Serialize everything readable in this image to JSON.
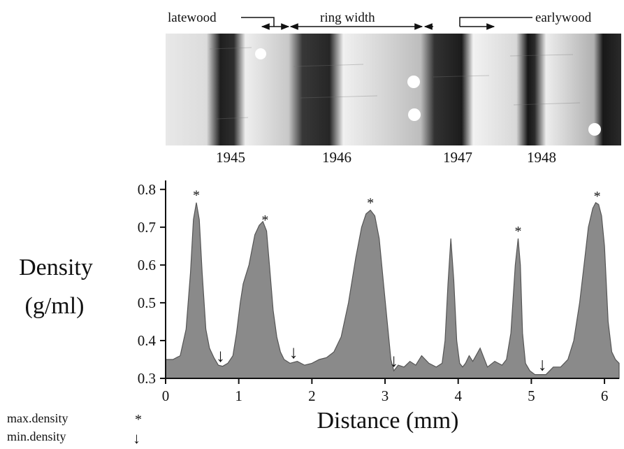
{
  "header_labels": {
    "latewood": "latewood",
    "ring_width": "ring width",
    "earlywood": "earlywood"
  },
  "year_labels": [
    "1945",
    "1946",
    "1947",
    "1948"
  ],
  "key": {
    "max_label": "max.density",
    "max_symbol": "*",
    "min_label": "min.density",
    "min_symbol": "↓"
  },
  "colors": {
    "area_fill": "#8a8a8a",
    "area_stroke": "#555555",
    "wood_light": "#e6e6e6",
    "wood_dark": "#2a2a2a"
  },
  "chart_data": {
    "type": "area",
    "xlabel": "Distance (mm)",
    "ylabel": "Density (g/ml)",
    "ylabel_lines": [
      "Density",
      "(g/ml)"
    ],
    "xlim": [
      0,
      6.2
    ],
    "ylim": [
      0.3,
      0.82
    ],
    "xticks": [
      0,
      1,
      2,
      3,
      4,
      5,
      6
    ],
    "yticks": [
      0.3,
      0.4,
      0.5,
      0.6,
      0.7,
      0.8
    ],
    "ytick_labels": [
      "0.3",
      "0.4",
      "0.5",
      "0.6",
      "0.7",
      "0.8"
    ],
    "grid": false,
    "series": [
      {
        "x": [
          0.0,
          0.1,
          0.2,
          0.28,
          0.34,
          0.38,
          0.42,
          0.46,
          0.5,
          0.55,
          0.6,
          0.66,
          0.72,
          0.78,
          0.85,
          0.92,
          0.97,
          1.02,
          1.06,
          1.1,
          1.14,
          1.18,
          1.22,
          1.28,
          1.33,
          1.38,
          1.42,
          1.47,
          1.52,
          1.57,
          1.62,
          1.7,
          1.8,
          1.9,
          2.0,
          2.1,
          2.2,
          2.3,
          2.4,
          2.5,
          2.6,
          2.68,
          2.74,
          2.8,
          2.86,
          2.92,
          2.98,
          3.04,
          3.08,
          3.12,
          3.18,
          3.26,
          3.34,
          3.42,
          3.5,
          3.6,
          3.7,
          3.78,
          3.82,
          3.86,
          3.9,
          3.94,
          3.98,
          4.02,
          4.06,
          4.1,
          4.15,
          4.2,
          4.3,
          4.4,
          4.5,
          4.6,
          4.66,
          4.72,
          4.78,
          4.82,
          4.85,
          4.88,
          4.92,
          4.98,
          5.05,
          5.12,
          5.2,
          5.3,
          5.4,
          5.5,
          5.58,
          5.66,
          5.72,
          5.78,
          5.84,
          5.88,
          5.92,
          5.96,
          6.0,
          6.05,
          6.1,
          6.15,
          6.2
        ],
        "y": [
          0.35,
          0.35,
          0.36,
          0.43,
          0.58,
          0.72,
          0.765,
          0.72,
          0.58,
          0.43,
          0.38,
          0.355,
          0.335,
          0.332,
          0.34,
          0.36,
          0.42,
          0.5,
          0.55,
          0.575,
          0.6,
          0.64,
          0.68,
          0.705,
          0.715,
          0.69,
          0.6,
          0.48,
          0.41,
          0.37,
          0.35,
          0.34,
          0.345,
          0.335,
          0.34,
          0.35,
          0.355,
          0.37,
          0.41,
          0.5,
          0.62,
          0.7,
          0.735,
          0.745,
          0.73,
          0.67,
          0.55,
          0.43,
          0.35,
          0.32,
          0.335,
          0.33,
          0.345,
          0.335,
          0.36,
          0.34,
          0.33,
          0.34,
          0.4,
          0.55,
          0.67,
          0.56,
          0.4,
          0.34,
          0.33,
          0.34,
          0.36,
          0.345,
          0.38,
          0.33,
          0.345,
          0.335,
          0.35,
          0.42,
          0.6,
          0.67,
          0.6,
          0.42,
          0.34,
          0.32,
          0.31,
          0.31,
          0.31,
          0.33,
          0.33,
          0.35,
          0.4,
          0.5,
          0.6,
          0.7,
          0.75,
          0.765,
          0.76,
          0.73,
          0.65,
          0.45,
          0.37,
          0.35,
          0.34
        ]
      }
    ],
    "max_density_x": [
      0.42,
      1.36,
      2.8,
      4.82,
      5.9
    ],
    "min_density_x": [
      0.75,
      1.75,
      3.12,
      5.15
    ]
  }
}
